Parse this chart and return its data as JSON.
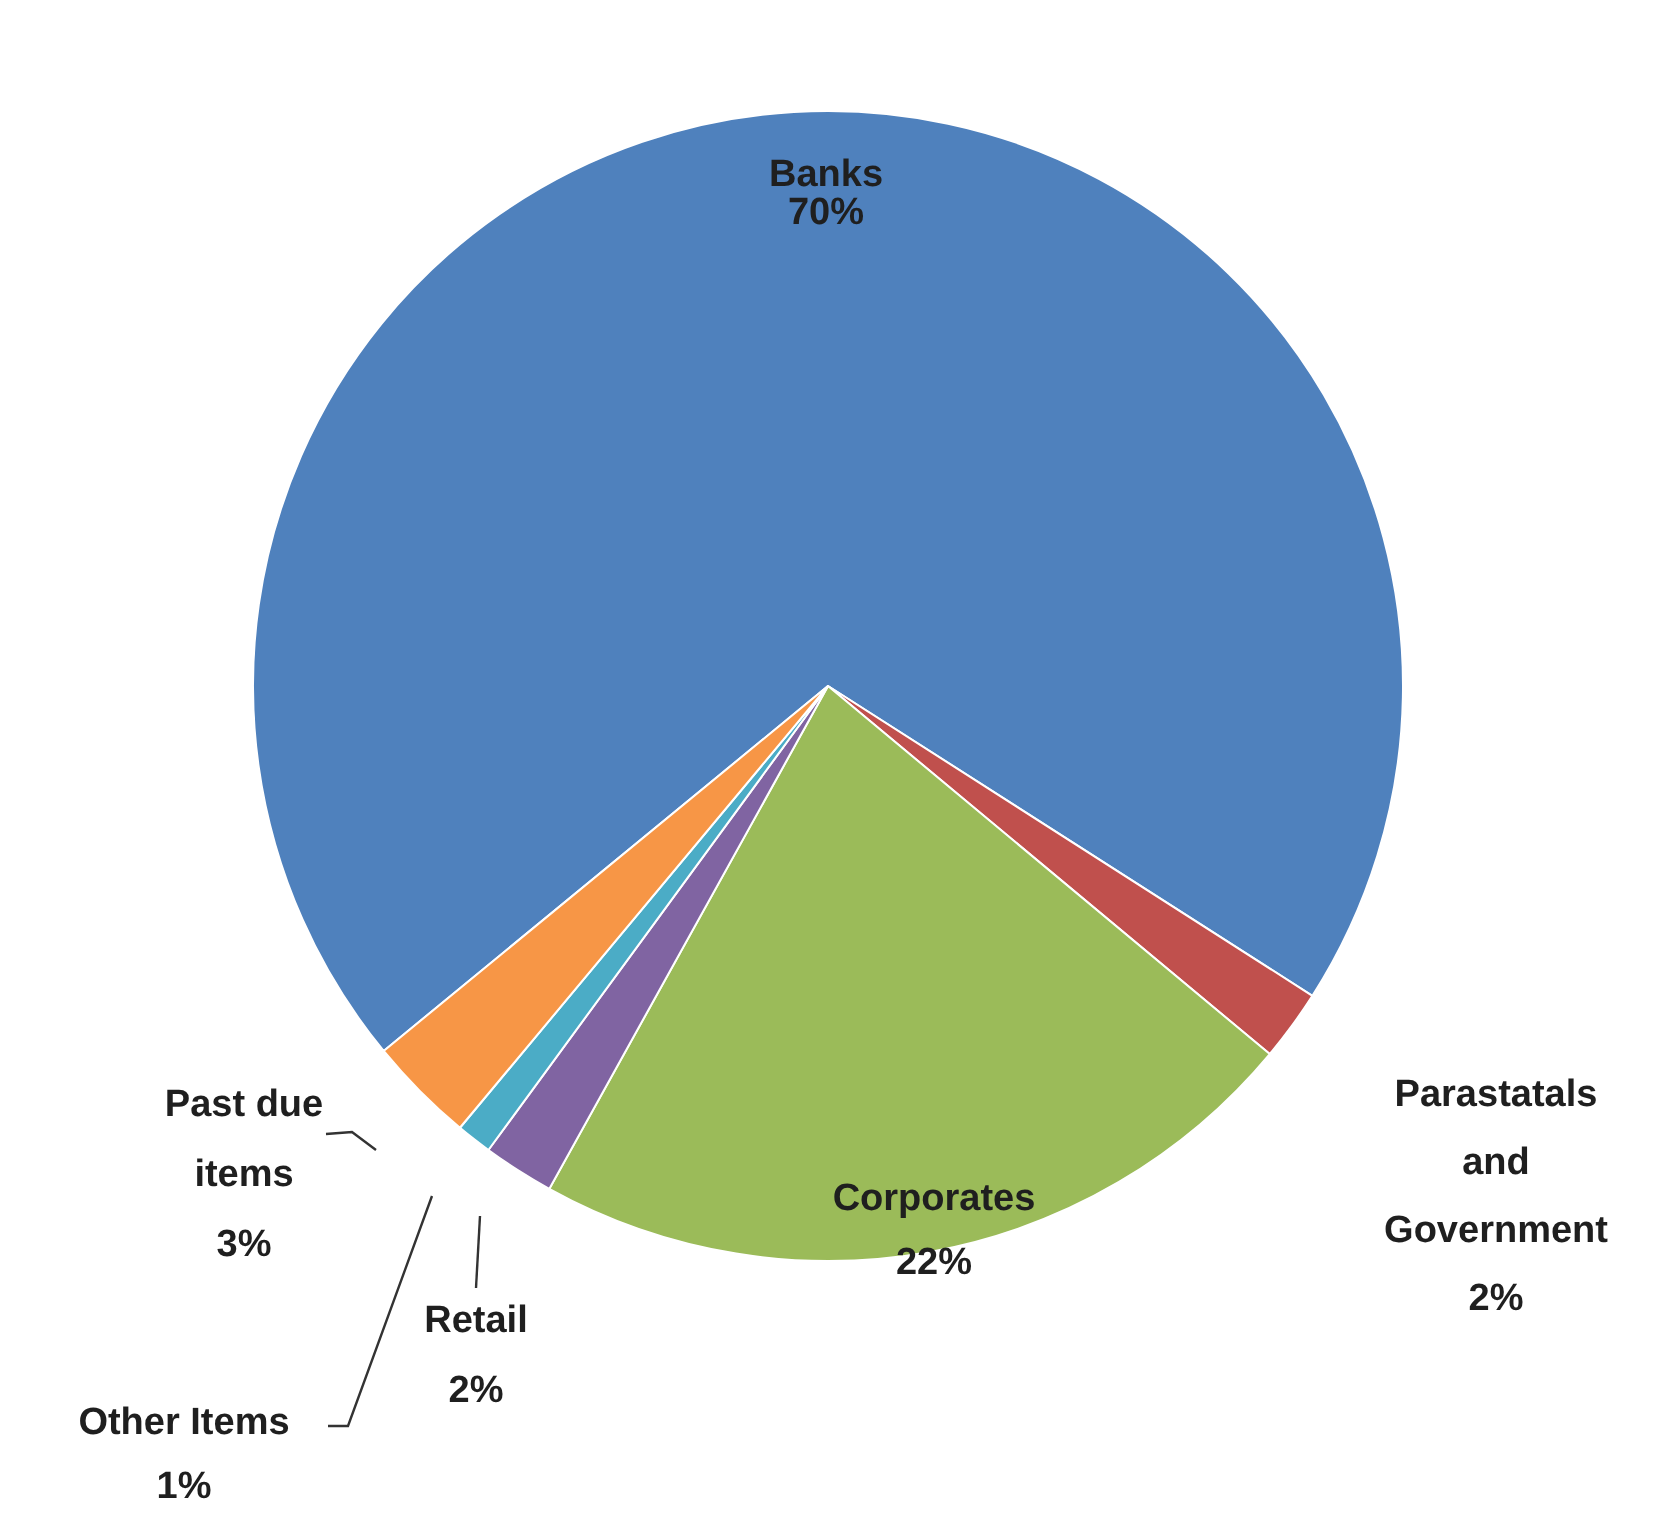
{
  "chart_data": {
    "type": "pie",
    "categories": [
      "Banks",
      "Parastatals and Government",
      "Corporates",
      "Retail",
      "Other Items",
      "Past due items"
    ],
    "values": [
      70,
      2,
      22,
      2,
      1,
      3
    ],
    "colors": [
      "#4f81bd",
      "#c0504d",
      "#9bbb59",
      "#8064a2",
      "#4bacc6",
      "#f79646"
    ],
    "value_labels": [
      "70%",
      "2%",
      "22%",
      "2%",
      "1%",
      "3%"
    ],
    "legend": false
  }
}
